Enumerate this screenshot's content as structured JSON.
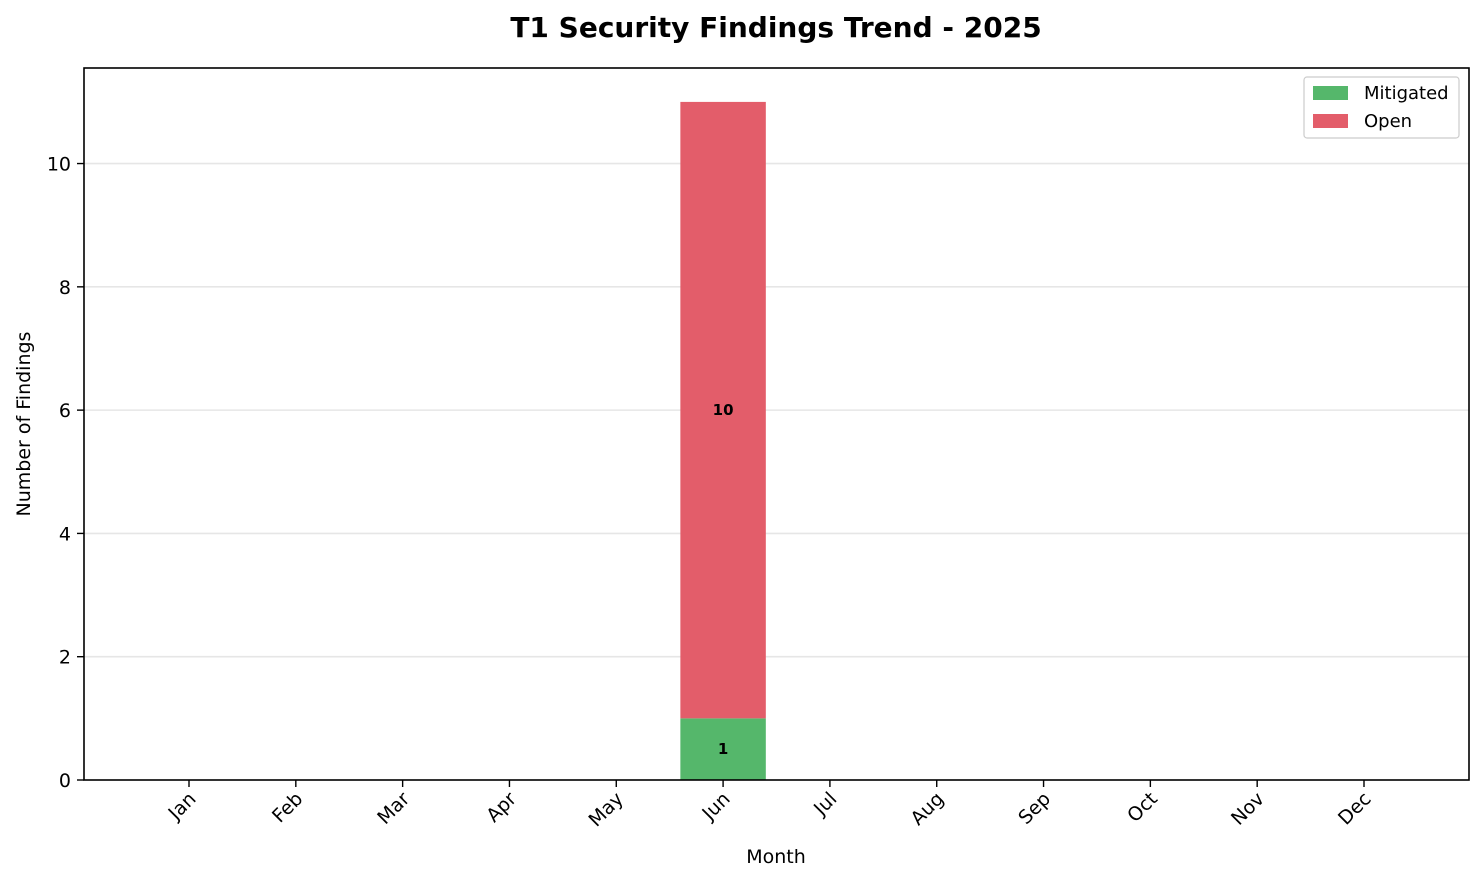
{
  "chart_data": {
    "type": "bar",
    "stacked": true,
    "title": "T1 Security Findings Trend - 2025",
    "xlabel": "Month",
    "ylabel": "Number of Findings",
    "categories": [
      "Jan",
      "Feb",
      "Mar",
      "Apr",
      "May",
      "Jun",
      "Jul",
      "Aug",
      "Sep",
      "Oct",
      "Nov",
      "Dec"
    ],
    "series": [
      {
        "name": "Mitigated",
        "color": "#55b76b",
        "values": [
          0,
          0,
          0,
          0,
          0,
          1,
          0,
          0,
          0,
          0,
          0,
          0
        ]
      },
      {
        "name": "Open",
        "color": "#e35d6a",
        "values": [
          0,
          0,
          0,
          0,
          0,
          10,
          0,
          0,
          0,
          0,
          0,
          0
        ]
      }
    ],
    "yticks": [
      0,
      2,
      4,
      6,
      8,
      10
    ],
    "ylim": [
      0,
      11.55
    ],
    "grid": "y",
    "legend_position": "top-right",
    "tick_label_rotation": 45
  }
}
